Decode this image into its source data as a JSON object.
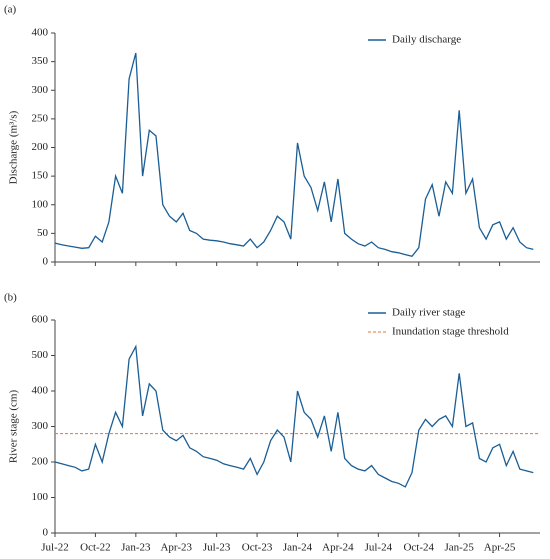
{
  "chart_data": [
    {
      "type": "line",
      "panel_label": "(a)",
      "ylabel": "Discharge (m³/s)",
      "ylim": [
        0,
        400
      ],
      "yticks": [
        0,
        50,
        100,
        150,
        200,
        250,
        300,
        350,
        400
      ],
      "series": [
        {
          "name": "Daily discharge",
          "color": "#1a5e96",
          "values": [
            33,
            30,
            28,
            26,
            24,
            25,
            45,
            35,
            70,
            150,
            120,
            320,
            365,
            150,
            230,
            220,
            100,
            80,
            70,
            85,
            55,
            50,
            40,
            38,
            37,
            35,
            32,
            30,
            28,
            40,
            25,
            35,
            55,
            80,
            70,
            40,
            208,
            150,
            130,
            90,
            140,
            70,
            145,
            50,
            40,
            32,
            28,
            35,
            25,
            22,
            18,
            16,
            13,
            10,
            25,
            110,
            135,
            80,
            140,
            120,
            265,
            120,
            145,
            60,
            40,
            65,
            70,
            40,
            60,
            35,
            25,
            22
          ]
        }
      ]
    },
    {
      "type": "line",
      "panel_label": "(b)",
      "ylabel": "River stage (cm)",
      "ylim": [
        0,
        600
      ],
      "yticks": [
        0,
        100,
        200,
        300,
        400,
        500,
        600
      ],
      "categories": [
        "Jul-22",
        null,
        null,
        null,
        null,
        null,
        "Oct-22",
        null,
        null,
        null,
        null,
        null,
        "Jan-23",
        null,
        null,
        null,
        null,
        null,
        "Apr-23",
        null,
        null,
        null,
        null,
        null,
        "Jul-23",
        null,
        null,
        null,
        null,
        null,
        "Oct-23",
        null,
        null,
        null,
        null,
        null,
        "Jan-24",
        null,
        null,
        null,
        null,
        null,
        "Apr-24",
        null,
        null,
        null,
        null,
        null,
        "Jul-24",
        null,
        null,
        null,
        null,
        null,
        "Oct-24",
        null,
        null,
        null,
        null,
        null,
        "Jan-25",
        null,
        null,
        null,
        null,
        null,
        "Apr-25",
        null,
        null,
        null,
        null,
        null
      ],
      "series": [
        {
          "name": "Daily river stage",
          "color": "#1a5e96",
          "values": [
            200,
            195,
            190,
            185,
            175,
            180,
            250,
            200,
            280,
            340,
            300,
            490,
            525,
            330,
            420,
            400,
            290,
            270,
            260,
            275,
            240,
            230,
            215,
            210,
            205,
            195,
            190,
            185,
            180,
            210,
            165,
            200,
            260,
            290,
            270,
            200,
            400,
            340,
            320,
            270,
            330,
            230,
            340,
            210,
            190,
            180,
            175,
            190,
            165,
            155,
            145,
            140,
            130,
            170,
            290,
            320,
            300,
            320,
            330,
            300,
            450,
            300,
            310,
            210,
            200,
            240,
            250,
            190,
            230,
            180,
            175,
            170
          ]
        }
      ],
      "threshold": {
        "name": "Inundation stage threshold",
        "value": 280,
        "color": "#e8733a"
      }
    }
  ]
}
